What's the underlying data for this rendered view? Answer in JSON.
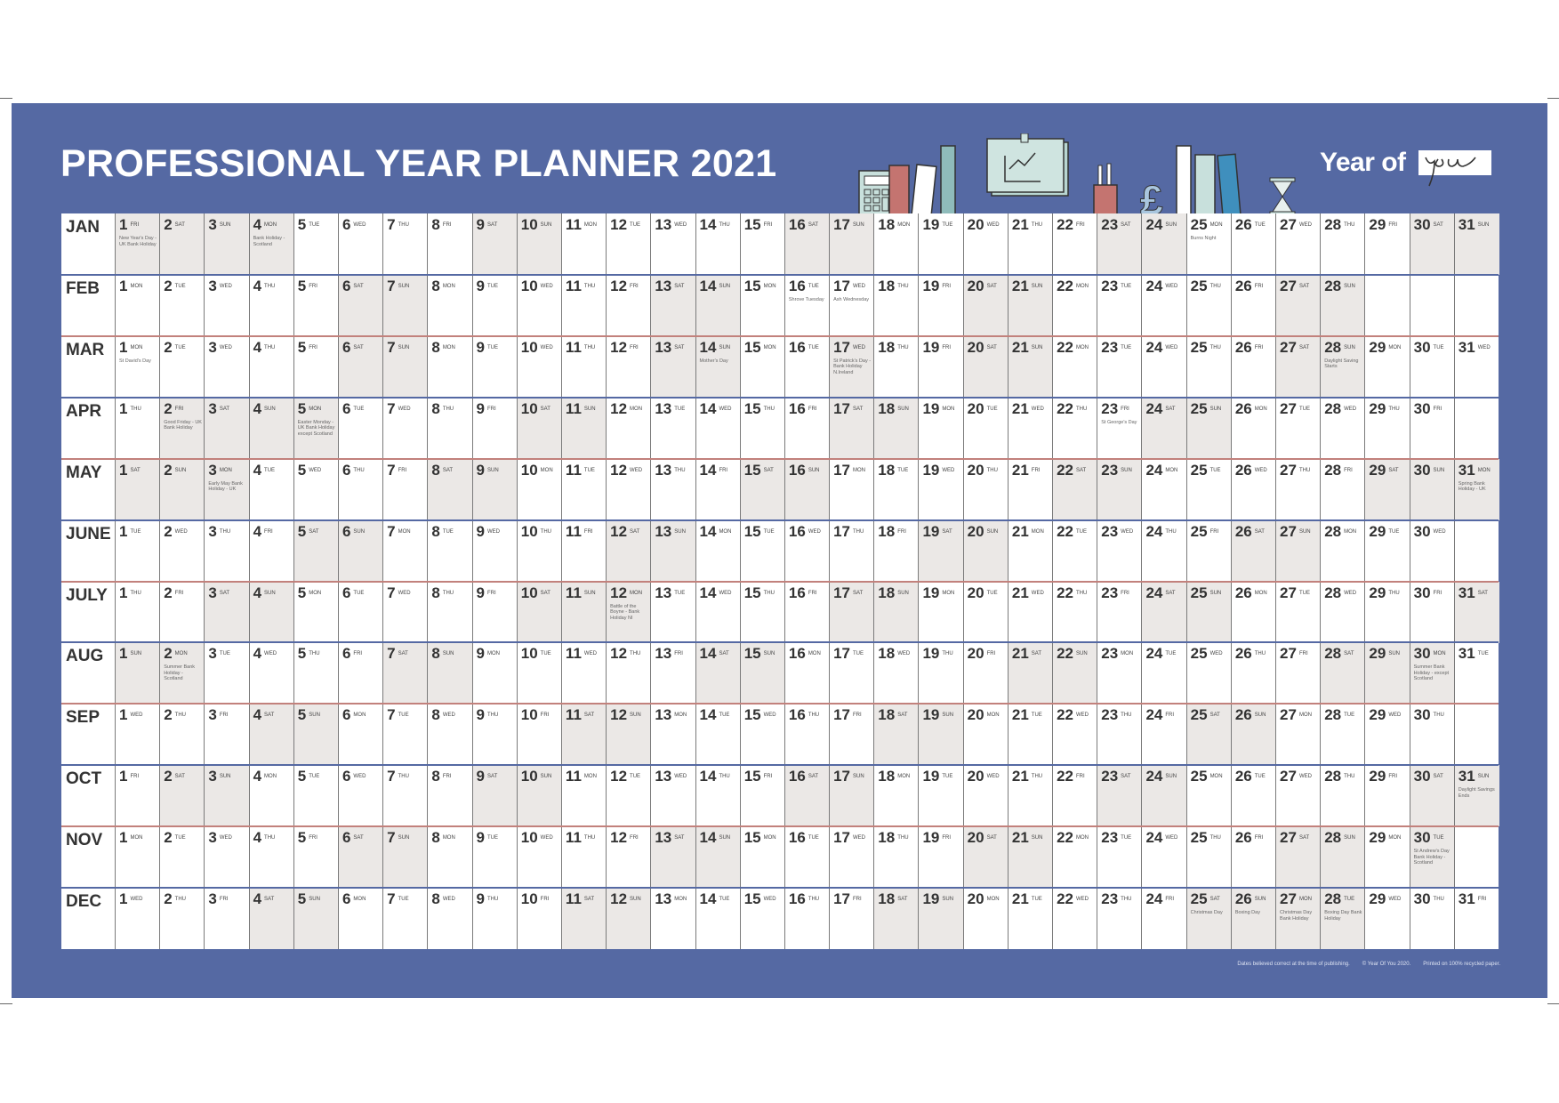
{
  "title": "PROFESSIONAL YEAR PLANNER 2021",
  "logo": {
    "text": "Year of",
    "script": "you"
  },
  "weekdays": [
    "MON",
    "TUE",
    "WED",
    "THU",
    "FRI",
    "SAT",
    "SUN"
  ],
  "colors": {
    "panel": "#5569a3",
    "shade": "#ebe8e6",
    "sep_blue": "#5569a3",
    "sep_red": "#c2817c"
  },
  "months": [
    {
      "name": "JAN",
      "days": 31,
      "start": "FRI",
      "notes": [
        {
          "day": 1,
          "text": "New Year's Day - UK Bank Holiday",
          "bank": true
        },
        {
          "day": 4,
          "text": "Bank Holiday - Scotland",
          "bank": true
        },
        {
          "day": 25,
          "text": "Burns Night",
          "bank": false
        }
      ]
    },
    {
      "name": "FEB",
      "days": 28,
      "start": "MON",
      "notes": [
        {
          "day": 16,
          "text": "Shrove Tuesday",
          "bank": false
        },
        {
          "day": 17,
          "text": "Ash Wednesday",
          "bank": false
        }
      ]
    },
    {
      "name": "MAR",
      "days": 31,
      "start": "MON",
      "notes": [
        {
          "day": 1,
          "text": "St David's Day",
          "bank": false
        },
        {
          "day": 14,
          "text": "Mother's Day",
          "bank": false
        },
        {
          "day": 17,
          "text": "St Patrick's Day - Bank Holiday N.Ireland",
          "bank": true
        },
        {
          "day": 28,
          "text": "Daylight Saving Starts",
          "bank": false
        }
      ]
    },
    {
      "name": "APR",
      "days": 30,
      "start": "THU",
      "notes": [
        {
          "day": 2,
          "text": "Good Friday - UK Bank Holiday",
          "bank": true
        },
        {
          "day": 5,
          "text": "Easter Monday - UK Bank Holiday except Scotland",
          "bank": true
        },
        {
          "day": 23,
          "text": "St George's Day",
          "bank": false
        }
      ]
    },
    {
      "name": "MAY",
      "days": 31,
      "start": "SAT",
      "notes": [
        {
          "day": 3,
          "text": "Early May Bank Holiday - UK",
          "bank": true
        },
        {
          "day": 31,
          "text": "Spring Bank Holiday - UK",
          "bank": true
        }
      ]
    },
    {
      "name": "JUNE",
      "days": 30,
      "start": "TUE",
      "notes": []
    },
    {
      "name": "JULY",
      "days": 31,
      "start": "THU",
      "notes": [
        {
          "day": 12,
          "text": "Battle of the Boyne - Bank Holiday NI",
          "bank": true
        }
      ]
    },
    {
      "name": "AUG",
      "days": 31,
      "start": "SUN",
      "notes": [
        {
          "day": 2,
          "text": "Summer Bank Holiday - Scotland",
          "bank": true
        },
        {
          "day": 30,
          "text": "Summer Bank Holiday - except Scotland",
          "bank": true
        }
      ]
    },
    {
      "name": "SEP",
      "days": 30,
      "start": "WED",
      "notes": []
    },
    {
      "name": "OCT",
      "days": 31,
      "start": "FRI",
      "notes": [
        {
          "day": 31,
          "text": "Daylight Savings Ends",
          "bank": false
        }
      ]
    },
    {
      "name": "NOV",
      "days": 30,
      "start": "MON",
      "notes": [
        {
          "day": 30,
          "text": "St Andrew's Day Bank Holiday - Scotland",
          "bank": true
        }
      ]
    },
    {
      "name": "DEC",
      "days": 31,
      "start": "WED",
      "notes": [
        {
          "day": 25,
          "text": "Christmas Day",
          "bank": false
        },
        {
          "day": 26,
          "text": "Boxing Day",
          "bank": false
        },
        {
          "day": 27,
          "text": "Christmas Day Bank Holiday",
          "bank": true
        },
        {
          "day": 28,
          "text": "Boxing Day Bank Holiday",
          "bank": true
        }
      ]
    }
  ],
  "footer": [
    "Dates believed correct at the time of publishing.",
    "© Year Of You 2020.",
    "Printed on 100% recycled paper."
  ]
}
